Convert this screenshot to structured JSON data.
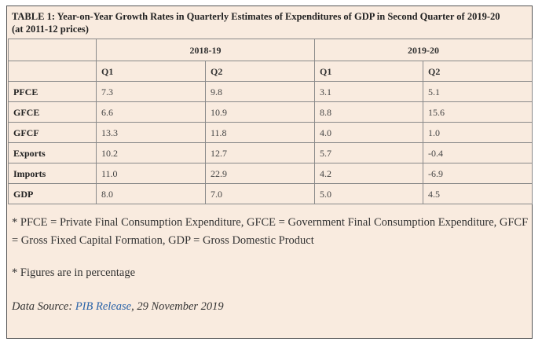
{
  "caption": {
    "line1": "TABLE 1: Year-on-Year Growth Rates in Quarterly Estimates of Expenditures of GDP in Second Quarter of 2019-20",
    "line2": "(at 2011-12 prices)"
  },
  "table": {
    "years": [
      "2018-19",
      "2019-20"
    ],
    "quarters": [
      "Q1",
      "Q2",
      "Q1",
      "Q2"
    ],
    "rows": [
      {
        "label": "PFCE",
        "values": [
          "7.3",
          "9.8",
          "3.1",
          "5.1"
        ]
      },
      {
        "label": "GFCE",
        "values": [
          "6.6",
          "10.9",
          "8.8",
          "15.6"
        ]
      },
      {
        "label": "GFCF",
        "values": [
          "13.3",
          "11.8",
          "4.0",
          "1.0"
        ]
      },
      {
        "label": "Exports",
        "values": [
          "10.2",
          "12.7",
          "5.7",
          "-0.4"
        ]
      },
      {
        "label": "Imports",
        "values": [
          "11.0",
          "22.9",
          "4.2",
          "-6.9"
        ]
      },
      {
        "label": "GDP",
        "values": [
          "8.0",
          "7.0",
          "5.0",
          "4.5"
        ]
      }
    ]
  },
  "notes": {
    "abbreviations": "* PFCE = Private Final Consumption Expenditure, GFCE = Government Final Consumption Expenditure, GFCF = Gross Fixed Capital Formation, GDP = Gross Domestic Product",
    "percentage": "* Figures are in percentage"
  },
  "source": {
    "prefix": "Data Source: ",
    "link_text": "PIB Release",
    "suffix": ", 29 November 2019"
  },
  "colors": {
    "panel_background": "#f9ebdf",
    "link": "#2a63a8"
  }
}
